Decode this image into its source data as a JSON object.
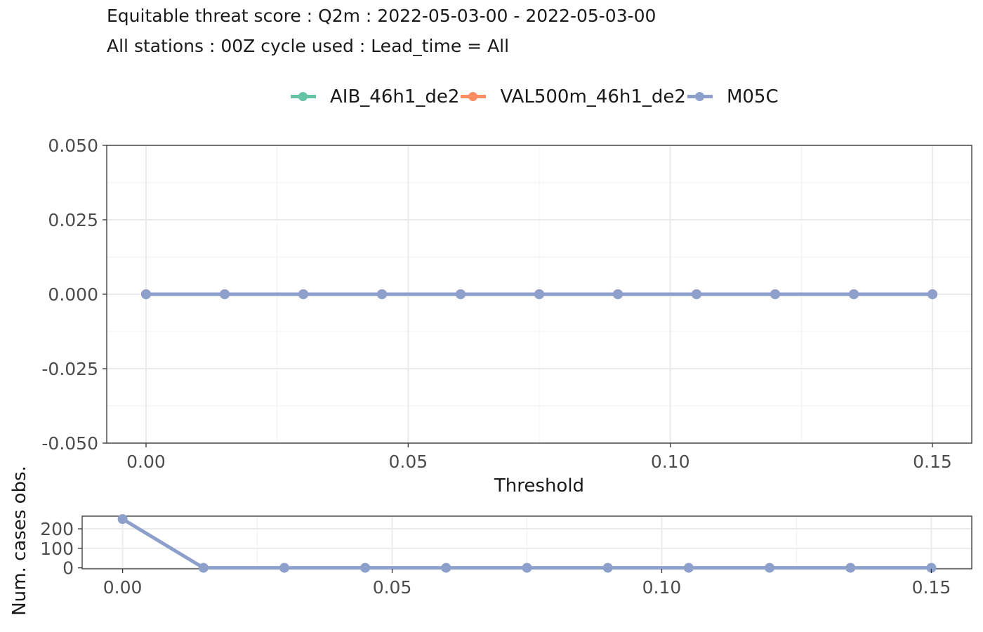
{
  "title_line1": "Equitable threat score : Q2m : 2022-05-03-00 - 2022-05-03-00",
  "title_line2": "All stations : 00Z cycle used : Lead_time = All",
  "legend": [
    {
      "label": "AIB_46h1_de2",
      "color": "#66C2A5"
    },
    {
      "label": "VAL500m_46h1_de2",
      "color": "#FC8D62"
    },
    {
      "label": "M05C",
      "color": "#8DA0CB"
    }
  ],
  "chart_data": [
    {
      "type": "line",
      "xlabel": "Threshold",
      "ylabel": "",
      "xlim": [
        -0.0075,
        0.1575
      ],
      "ylim": [
        -0.05,
        0.05
      ],
      "x_ticks": [
        "0.00",
        "0.05",
        "0.10",
        "0.15"
      ],
      "x_tick_values": [
        0,
        0.05,
        0.1,
        0.15
      ],
      "y_ticks": [
        "0.050",
        "0.025",
        "0.000",
        "-0.025",
        "-0.050"
      ],
      "y_tick_values": [
        0.05,
        0.025,
        0,
        -0.025,
        -0.05
      ],
      "x": [
        0,
        0.015,
        0.03,
        0.045,
        0.06,
        0.075,
        0.09,
        0.105,
        0.12,
        0.135,
        0.15
      ],
      "series": [
        {
          "name": "AIB_46h1_de2",
          "values": [
            0,
            0,
            0,
            0,
            0,
            0,
            0,
            0,
            0,
            0,
            0
          ]
        },
        {
          "name": "VAL500m_46h1_de2",
          "values": [
            0,
            0,
            0,
            0,
            0,
            0,
            0,
            0,
            0,
            0,
            0
          ]
        },
        {
          "name": "M05C",
          "values": [
            0,
            0,
            0,
            0,
            0,
            0,
            0,
            0,
            0,
            0,
            0
          ]
        }
      ]
    },
    {
      "type": "line",
      "xlabel": "",
      "ylabel": "Num. cases obs.",
      "xlim": [
        -0.0075,
        0.1575
      ],
      "ylim": [
        -5,
        265
      ],
      "x_ticks": [
        "0.00",
        "0.05",
        "0.10",
        "0.15"
      ],
      "x_tick_values": [
        0,
        0.05,
        0.1,
        0.15
      ],
      "y_ticks": [
        "200",
        "100",
        "0"
      ],
      "y_tick_values": [
        200,
        100,
        0
      ],
      "x": [
        0,
        0.015,
        0.03,
        0.045,
        0.06,
        0.075,
        0.09,
        0.105,
        0.12,
        0.135,
        0.15
      ],
      "series": [
        {
          "name": "M05C",
          "values": [
            250,
            0,
            0,
            0,
            0,
            0,
            0,
            0,
            0,
            0,
            0
          ]
        }
      ]
    }
  ]
}
